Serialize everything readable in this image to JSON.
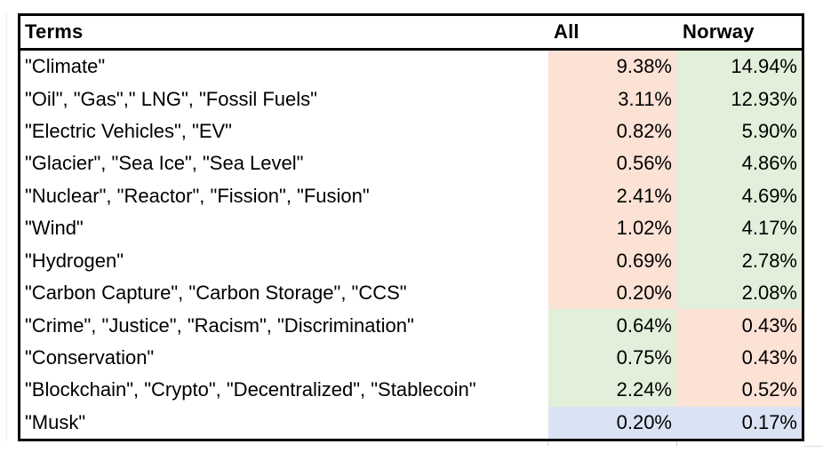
{
  "chart_data": {
    "type": "table",
    "columns": [
      {
        "label": "Terms"
      },
      {
        "label": "All"
      },
      {
        "label": "Norway"
      }
    ],
    "unit": "%",
    "rows": [
      {
        "terms": "\"Climate\"",
        "all": "9.38%",
        "norway": "14.94%",
        "all_value": 9.38,
        "norway_value": 14.94,
        "all_bg": "salmon",
        "norway_bg": "green"
      },
      {
        "terms": "\"Oil\", \"Gas\",\" LNG\", \"Fossil Fuels\"",
        "all": "3.11%",
        "norway": "12.93%",
        "all_value": 3.11,
        "norway_value": 12.93,
        "all_bg": "salmon",
        "norway_bg": "green"
      },
      {
        "terms": "\"Electric Vehicles\", \"EV\"",
        "all": "0.82%",
        "norway": "5.90%",
        "all_value": 0.82,
        "norway_value": 5.9,
        "all_bg": "salmon",
        "norway_bg": "green"
      },
      {
        "terms": "\"Glacier\", \"Sea Ice\", \"Sea Level\"",
        "all": "0.56%",
        "norway": "4.86%",
        "all_value": 0.56,
        "norway_value": 4.86,
        "all_bg": "salmon",
        "norway_bg": "green"
      },
      {
        "terms": "\"Nuclear\", \"Reactor\", \"Fission\", \"Fusion\"",
        "all": "2.41%",
        "norway": "4.69%",
        "all_value": 2.41,
        "norway_value": 4.69,
        "all_bg": "salmon",
        "norway_bg": "green"
      },
      {
        "terms": "\"Wind\"",
        "all": "1.02%",
        "norway": "4.17%",
        "all_value": 1.02,
        "norway_value": 4.17,
        "all_bg": "salmon",
        "norway_bg": "green"
      },
      {
        "terms": "\"Hydrogen\"",
        "all": "0.69%",
        "norway": "2.78%",
        "all_value": 0.69,
        "norway_value": 2.78,
        "all_bg": "salmon",
        "norway_bg": "green"
      },
      {
        "terms": "\"Carbon Capture\", \"Carbon Storage\", \"CCS\"",
        "all": "0.20%",
        "norway": "2.08%",
        "all_value": 0.2,
        "norway_value": 2.08,
        "all_bg": "salmon",
        "norway_bg": "green"
      },
      {
        "terms": "\"Crime\", \"Justice\", \"Racism\", \"Discrimination\"",
        "all": "0.64%",
        "norway": "0.43%",
        "all_value": 0.64,
        "norway_value": 0.43,
        "all_bg": "green",
        "norway_bg": "salmon"
      },
      {
        "terms": "\"Conservation\"",
        "all": "0.75%",
        "norway": "0.43%",
        "all_value": 0.75,
        "norway_value": 0.43,
        "all_bg": "green",
        "norway_bg": "salmon"
      },
      {
        "terms": "\"Blockchain\", \"Crypto\", \"Decentralized\", \"Stablecoin\"",
        "all": "2.24%",
        "norway": "0.52%",
        "all_value": 2.24,
        "norway_value": 0.52,
        "all_bg": "green",
        "norway_bg": "salmon"
      },
      {
        "terms": "\"Musk\"",
        "all": "0.20%",
        "norway": "0.17%",
        "all_value": 0.2,
        "norway_value": 0.17,
        "all_bg": "blue",
        "norway_bg": "blue"
      }
    ]
  },
  "colors": {
    "salmon": "#FBE2D5",
    "green": "#E2EFDA",
    "blue": "#DAE3F3",
    "border": "#000000",
    "text": "#000000",
    "background": "#FFFFFF"
  }
}
